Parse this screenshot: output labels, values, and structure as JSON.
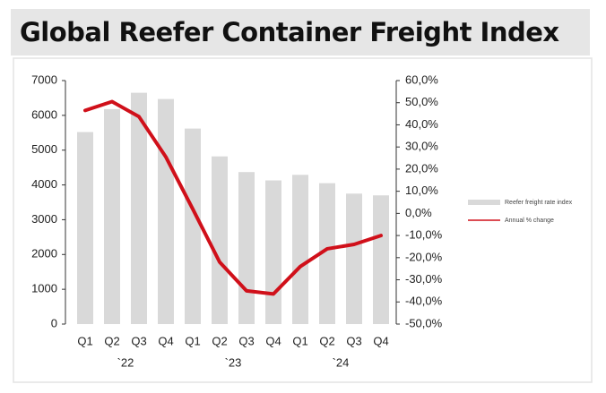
{
  "chart_data": {
    "type": "bar-line",
    "title": "Global Reefer Container Freight Index",
    "categories": [
      "Q1",
      "Q2",
      "Q3",
      "Q4",
      "Q1",
      "Q2",
      "Q3",
      "Q4",
      "Q1",
      "Q2",
      "Q3",
      "Q4"
    ],
    "year_groups": [
      "`22",
      "`23",
      "`24"
    ],
    "series": [
      {
        "name": "Reefer freight rate index",
        "type": "bar",
        "color": "#d9d9d9",
        "values": [
          5520,
          6180,
          6650,
          6470,
          5620,
          4820,
          4370,
          4130,
          4290,
          4050,
          3750,
          3700
        ]
      },
      {
        "name": "Annual % change",
        "type": "line",
        "axis": "y2",
        "color": "#d0101a",
        "values": [
          46.5,
          50.5,
          43.7,
          25.5,
          2,
          -22,
          -35,
          -36.4,
          -24,
          -16,
          -14,
          -10
        ]
      }
    ],
    "ylim": [
      0,
      7000
    ],
    "yticks": [
      0,
      1000,
      2000,
      3000,
      4000,
      5000,
      6000,
      7000
    ],
    "y2lim": [
      -50,
      60
    ],
    "y2ticks": [
      {
        "value": -50,
        "label": "-50,0%"
      },
      {
        "value": -40,
        "label": "-40,0%"
      },
      {
        "value": -30,
        "label": "-30,0%"
      },
      {
        "value": -20,
        "label": "-20,0%"
      },
      {
        "value": -10,
        "label": "-10,0%"
      },
      {
        "value": 0,
        "label": "0,0%"
      },
      {
        "value": 10,
        "label": "10,0%"
      },
      {
        "value": 20,
        "label": "20,0%"
      },
      {
        "value": 30,
        "label": "30,0%"
      },
      {
        "value": 40,
        "label": "40,0%"
      },
      {
        "value": 50,
        "label": "50,0%"
      },
      {
        "value": 60,
        "label": "60,0%"
      }
    ],
    "legend": "right"
  }
}
